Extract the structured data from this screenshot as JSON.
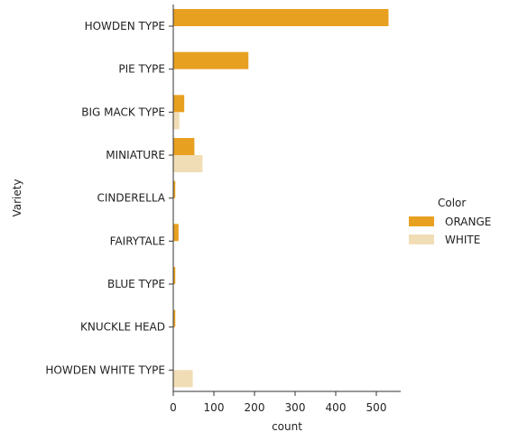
{
  "chart_data": {
    "type": "bar",
    "orientation": "horizontal",
    "categories": [
      "HOWDEN TYPE",
      "PIE TYPE",
      "BIG MACK TYPE",
      "MINIATURE",
      "CINDERELLA",
      "FAIRYTALE",
      "BLUE TYPE",
      "KNUCKLE HEAD",
      "HOWDEN WHITE TYPE"
    ],
    "series": [
      {
        "name": "ORANGE",
        "color": "#E8A020",
        "values": [
          530,
          185,
          27,
          52,
          5,
          13,
          5,
          5,
          0
        ]
      },
      {
        "name": "WHITE",
        "color": "#F1DDB5",
        "values": [
          0,
          0,
          15,
          72,
          0,
          0,
          0,
          0,
          48
        ]
      }
    ],
    "xlabel": "count",
    "ylabel": "Variety",
    "xlim": [
      0,
      560
    ],
    "xticks": [
      0,
      100,
      200,
      300,
      400,
      500
    ],
    "legend": {
      "title": "Color",
      "placement": "center-right"
    },
    "grid": false
  }
}
